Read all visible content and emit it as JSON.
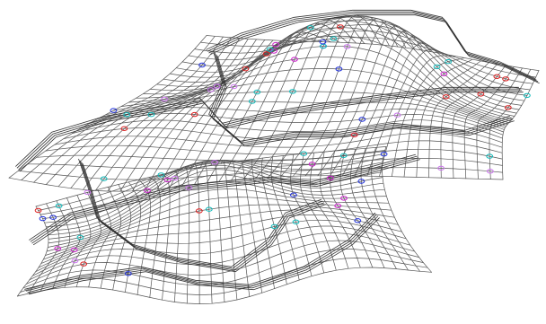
{
  "scene": {
    "type": "3d-wireframe-surface",
    "projection": "isometric",
    "background_color": "#ffffff",
    "colors": {
      "wire": "#555555",
      "wire_dense": "#333333",
      "marker_blue": "#2233dd",
      "marker_magenta": "#cc22cc",
      "marker_cyan": "#11bbbb",
      "marker_red": "#dd2222",
      "marker_violet": "#cc77ee"
    },
    "marker_kinds": [
      "blue",
      "magenta",
      "cyan",
      "red",
      "violet"
    ],
    "mesh": {
      "upper_lobe": {
        "rows": 26,
        "cols": 40
      },
      "lower_lobe": {
        "rows": 22,
        "cols": 34
      }
    }
  }
}
